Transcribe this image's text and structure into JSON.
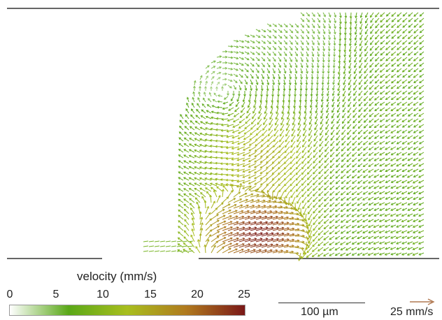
{
  "figure": {
    "colorbar": {
      "title": "velocity (mm/s)",
      "ticks": [
        "0",
        "5",
        "10",
        "15",
        "20",
        "25"
      ],
      "range": [
        0,
        25
      ],
      "colors": [
        "#ffffff",
        "#5aa818",
        "#a8be1e",
        "#b07a1e",
        "#7a1818"
      ]
    },
    "scale_bar": {
      "label": "100 µm"
    },
    "reference_arrow": {
      "label": "25 mm/s",
      "color": "#b07850"
    },
    "vector_field": {
      "description_units": "mm/s",
      "max_speed": 25
    }
  }
}
